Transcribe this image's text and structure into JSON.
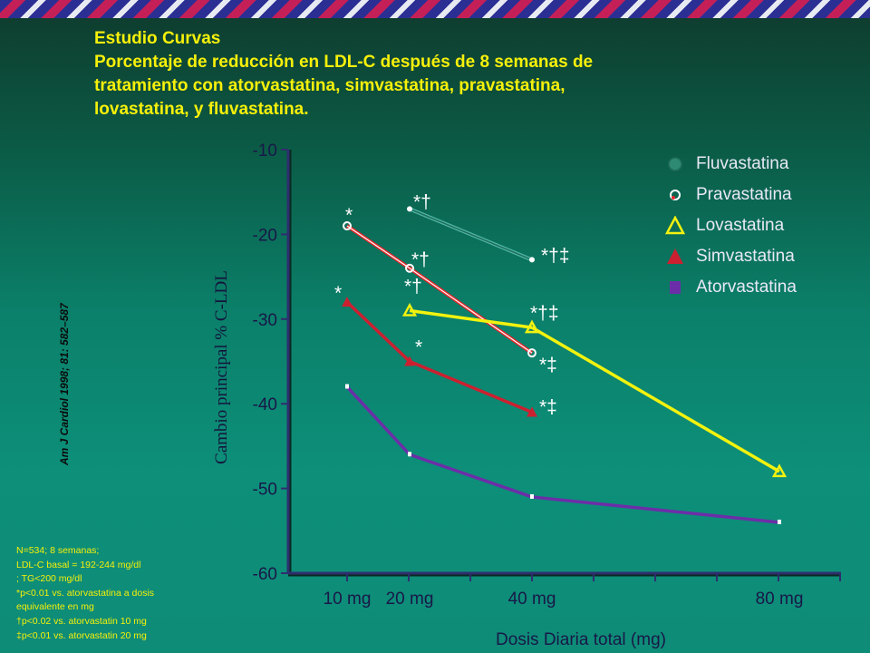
{
  "slide": {
    "title_lines": [
      "Estudio Curvas",
      "Porcentaje de reducción en LDL-C después de 8 semanas de",
      "tratamiento con atorvastatina, simvastatina, pravastatina,",
      "lovastatina, y fluvastatina."
    ],
    "citation": "Am J Cardiol 1998; 81: 582–587",
    "notes": [
      "N=534; 8 semanas;",
      "LDL-C basal = 192-244 mg/dl",
      "; TG<200 mg/dl",
      "*p<0.01 vs. atorvastatina  a dosis",
      "equivalente  en mg",
      "†p<0.02 vs. atorvastatin  10 mg",
      "‡p<0.01 vs. atorvastatin  20 mg"
    ]
  },
  "colors": {
    "text_yellow": "#f6f00a",
    "axis": "#2e2e6e",
    "fluvastatina": "#2e8a72",
    "pravastatina": "#e8262a",
    "lovastatina": "#f2f20f",
    "simvastatina": "#cc2030",
    "atorvastatina": "#6c2ea8"
  },
  "chart_data": {
    "type": "line",
    "ylabel": "Cambio principal % C-LDL",
    "xlabel": "Dosis Diaria total (mg)",
    "ylim": [
      -60,
      -10
    ],
    "yticks": [
      -10,
      -20,
      -30,
      -40,
      -50,
      -60
    ],
    "ytick_labels": [
      "-10",
      "-20",
      "-30",
      "-40",
      "-50",
      "-60"
    ],
    "x_categories": [
      "10 mg",
      "20 mg",
      "40 mg",
      "80 mg"
    ],
    "x_values": [
      10,
      20,
      40,
      80
    ],
    "grid": false,
    "legend_position": "top-right",
    "series": [
      {
        "name": "Fluvastatina",
        "color": "#2e8a72",
        "marker": "circle",
        "points": [
          {
            "x": 20,
            "y": -17,
            "annotation": "*†"
          },
          {
            "x": 40,
            "y": -23,
            "annotation": "*†‡"
          }
        ]
      },
      {
        "name": "Pravastatina",
        "color": "#e8262a",
        "marker": "ring",
        "points": [
          {
            "x": 10,
            "y": -19,
            "annotation": "*"
          },
          {
            "x": 20,
            "y": -24,
            "annotation": "*†"
          },
          {
            "x": 40,
            "y": -34,
            "annotation": "*‡"
          }
        ]
      },
      {
        "name": "Lovastatina",
        "color": "#f2f20f",
        "marker": "triangle-open",
        "points": [
          {
            "x": 20,
            "y": -29,
            "annotation": "*†"
          },
          {
            "x": 40,
            "y": -31,
            "annotation": "*†‡"
          },
          {
            "x": 80,
            "y": -48,
            "annotation": ""
          }
        ]
      },
      {
        "name": "Simvastatina",
        "color": "#cc2030",
        "marker": "triangle-filled",
        "points": [
          {
            "x": 10,
            "y": -28,
            "annotation": "*"
          },
          {
            "x": 20,
            "y": -35,
            "annotation": "*"
          },
          {
            "x": 40,
            "y": -41,
            "annotation": "*‡"
          }
        ]
      },
      {
        "name": "Atorvastatina",
        "color": "#6c2ea8",
        "marker": "square",
        "points": [
          {
            "x": 10,
            "y": -38,
            "annotation": ""
          },
          {
            "x": 20,
            "y": -46,
            "annotation": ""
          },
          {
            "x": 40,
            "y": -51,
            "annotation": ""
          },
          {
            "x": 80,
            "y": -54,
            "annotation": ""
          }
        ]
      }
    ]
  }
}
